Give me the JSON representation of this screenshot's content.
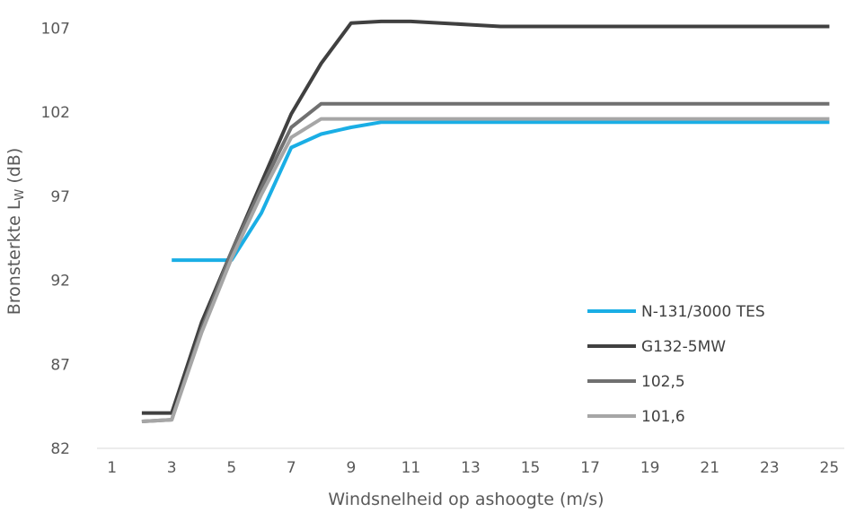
{
  "chart_data": {
    "type": "line",
    "title": "",
    "xlabel": "Windsnelheid op ashoogte (m/s)",
    "ylabel": {
      "main": "Bronsterkte L",
      "sub": "W",
      "suffix": " (dB)"
    },
    "xlim": [
      0.5,
      25.5
    ],
    "ylim": [
      82,
      107.5
    ],
    "x_ticks": [
      1,
      3,
      5,
      7,
      9,
      11,
      13,
      15,
      17,
      19,
      21,
      23,
      25
    ],
    "y_ticks": [
      82,
      87,
      92,
      97,
      102,
      107
    ],
    "grid": false,
    "legend_position": "right",
    "x": [
      2,
      3,
      4,
      5,
      6,
      7,
      8,
      9,
      10,
      11,
      12,
      13,
      14,
      15,
      16,
      17,
      18,
      19,
      20,
      21,
      22,
      23,
      24,
      25
    ],
    "series": [
      {
        "name": "N-131/3000 TES",
        "color": "#1aaee5",
        "values": [
          null,
          93.2,
          93.2,
          93.2,
          96,
          99.9,
          100.7,
          101.1,
          101.4,
          101.4,
          101.4,
          101.4,
          101.4,
          101.4,
          101.4,
          101.4,
          101.4,
          101.4,
          101.4,
          101.4,
          101.4,
          101.4,
          101.4,
          101.4
        ]
      },
      {
        "name": "G132-5MW",
        "color": "#404040",
        "values": [
          84.1,
          84.1,
          89.5,
          93.7,
          97.8,
          101.9,
          104.9,
          107.3,
          107.4,
          107.4,
          107.3,
          107.2,
          107.1,
          107.1,
          107.1,
          107.1,
          107.1,
          107.1,
          107.1,
          107.1,
          107.1,
          107.1,
          107.1,
          107.1
        ]
      },
      {
        "name": "102,5",
        "color": "#707070",
        "values": [
          83.6,
          83.7,
          89.1,
          93.7,
          97.5,
          101.1,
          102.5,
          102.5,
          102.5,
          102.5,
          102.5,
          102.5,
          102.5,
          102.5,
          102.5,
          102.5,
          102.5,
          102.5,
          102.5,
          102.5,
          102.5,
          102.5,
          102.5,
          102.5
        ]
      },
      {
        "name": "101,6",
        "color": "#a6a6a6",
        "values": [
          83.6,
          83.7,
          88.9,
          93.3,
          97.1,
          100.5,
          101.6,
          101.6,
          101.6,
          101.6,
          101.6,
          101.6,
          101.6,
          101.6,
          101.6,
          101.6,
          101.6,
          101.6,
          101.6,
          101.6,
          101.6,
          101.6,
          101.6,
          101.6
        ]
      }
    ]
  }
}
